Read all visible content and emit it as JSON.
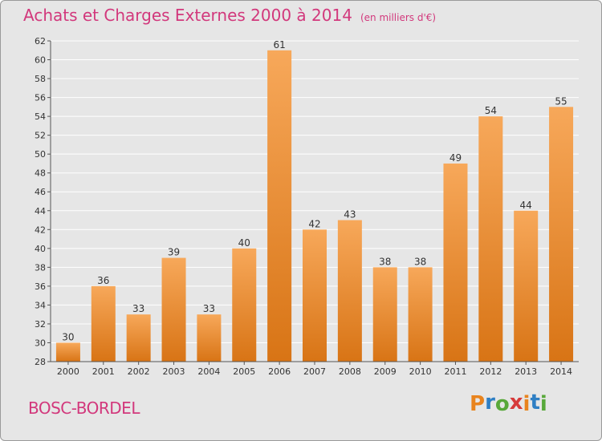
{
  "header": {
    "title": "Achats et Charges Externes 2000 à 2014",
    "subtitle": "(en milliers d'€)"
  },
  "footer": {
    "commune": "BOSC-BORDEL",
    "brand_letters": [
      "P",
      "r",
      "o",
      "x",
      "i",
      "t",
      "i"
    ],
    "brand_colors": [
      "#e9841e",
      "#2f7fc4",
      "#58a83a",
      "#d63a3a",
      "#e9841e",
      "#2f7fc4",
      "#58a83a"
    ]
  },
  "colors": {
    "bar_top": "#f7a85a",
    "bar_bottom": "#d87415",
    "grid": "#ffffff",
    "text": "#333333",
    "accent": "#d2387c"
  },
  "chart_data": {
    "type": "bar",
    "title": "Achats et Charges Externes 2000 à 2014",
    "subtitle": "(en milliers d'€)",
    "categories": [
      "2000",
      "2001",
      "2002",
      "2003",
      "2004",
      "2005",
      "2006",
      "2007",
      "2008",
      "2009",
      "2010",
      "2011",
      "2012",
      "2013",
      "2014"
    ],
    "values": [
      30,
      36,
      33,
      39,
      33,
      40,
      61,
      42,
      43,
      38,
      38,
      49,
      54,
      44,
      55
    ],
    "ylim": [
      28,
      62
    ],
    "yticks": [
      28,
      30,
      32,
      34,
      36,
      38,
      40,
      42,
      44,
      46,
      48,
      50,
      52,
      54,
      56,
      58,
      60,
      62
    ],
    "grid": true,
    "data_labels": true
  }
}
